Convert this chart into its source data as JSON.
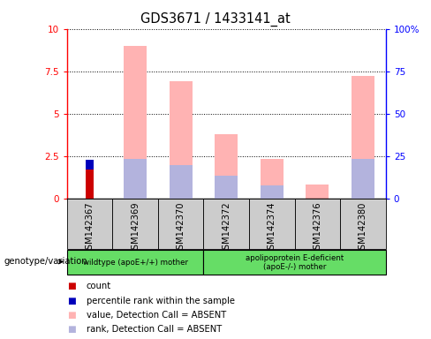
{
  "title": "GDS3671 / 1433141_at",
  "samples": [
    "GSM142367",
    "GSM142369",
    "GSM142370",
    "GSM142372",
    "GSM142374",
    "GSM142376",
    "GSM142380"
  ],
  "count": [
    1.7,
    0,
    0,
    0,
    0,
    0,
    0
  ],
  "percentile_rank": [
    0.55,
    0,
    0,
    0,
    0,
    0,
    0
  ],
  "value_absent": [
    0,
    9.0,
    6.9,
    3.8,
    2.3,
    0.8,
    7.2
  ],
  "rank_absent": [
    0,
    2.3,
    1.95,
    1.35,
    0.75,
    0,
    2.3
  ],
  "ylim_left": [
    0,
    10
  ],
  "ylim_right": [
    0,
    100
  ],
  "yticks_left": [
    0,
    2.5,
    5,
    7.5,
    10
  ],
  "yticks_right": [
    0,
    25,
    50,
    75,
    100
  ],
  "ytick_labels_left": [
    "0",
    "2.5",
    "5",
    "7.5",
    "10"
  ],
  "ytick_labels_right": [
    "0",
    "25",
    "50",
    "75",
    "100%"
  ],
  "color_count": "#cc0000",
  "color_rank": "#0000bb",
  "color_value_absent": "#ffb3b3",
  "color_rank_absent": "#b3b3dd",
  "group1_label": "wildtype (apoE+/+) mother",
  "group2_label": "apolipoprotein E-deficient\n(apoE-/-) mother",
  "group_label_prefix": "genotype/variation",
  "group1_color": "#66dd66",
  "group2_color": "#66dd66",
  "legend_items": [
    {
      "label": "count",
      "color": "#cc0000"
    },
    {
      "label": "percentile rank within the sample",
      "color": "#0000bb"
    },
    {
      "label": "value, Detection Call = ABSENT",
      "color": "#ffb3b3"
    },
    {
      "label": "rank, Detection Call = ABSENT",
      "color": "#b3b3dd"
    }
  ],
  "tick_bg_color": "#cccccc",
  "spine_color": "#000000",
  "bar_width": 0.5,
  "count_bar_width": 0.18
}
